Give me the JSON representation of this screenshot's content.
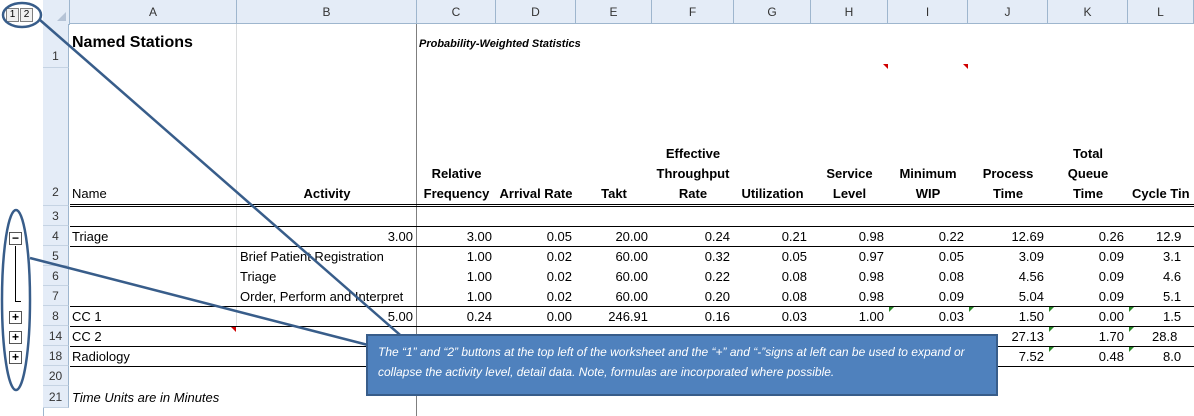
{
  "outline": {
    "level1": "1",
    "level2": "2",
    "plus_sign": "+",
    "minus_sign": "−"
  },
  "columns": [
    "A",
    "B",
    "C",
    "D",
    "E",
    "F",
    "G",
    "H",
    "I",
    "J",
    "K",
    "L"
  ],
  "rows": [
    "1",
    "2",
    "3",
    "4",
    "5",
    "6",
    "7",
    "8",
    "14",
    "18",
    "20",
    "21"
  ],
  "title": "Named Stations",
  "subtitle": "Probability-Weighted Statistics",
  "headers": {
    "name": "Name",
    "activity": "Activity",
    "relative_frequency": [
      "Relative",
      "Frequency"
    ],
    "arrival_rate": "Arrival Rate",
    "takt": "Takt",
    "effective_throughput_rate": [
      "Effective",
      "Throughput",
      "Rate"
    ],
    "utilization": "Utilization",
    "service_level": [
      "Service",
      "Level"
    ],
    "minimum_wip": [
      "Minimum",
      "WIP"
    ],
    "process_time": [
      "Process",
      "Time"
    ],
    "total_queue_time": [
      "Total",
      "Queue",
      "Time"
    ],
    "cycle_time": "Cycle Tin"
  },
  "data_rows": [
    {
      "row": "4",
      "name": "Triage",
      "activity": "",
      "b": "3.00",
      "values": [
        "3.00",
        "0.05",
        "20.00",
        "0.24",
        "0.21",
        "0.98",
        "0.22",
        "12.69",
        "0.26",
        "12.9"
      ]
    },
    {
      "row": "5",
      "name": "",
      "activity": "Brief Patient Registration",
      "b": "",
      "values": [
        "1.00",
        "0.02",
        "60.00",
        "0.32",
        "0.05",
        "0.97",
        "0.05",
        "3.09",
        "0.09",
        "3.1"
      ]
    },
    {
      "row": "6",
      "name": "",
      "activity": "Triage",
      "b": "",
      "values": [
        "1.00",
        "0.02",
        "60.00",
        "0.22",
        "0.08",
        "0.98",
        "0.08",
        "4.56",
        "0.09",
        "4.6"
      ]
    },
    {
      "row": "7",
      "name": "",
      "activity": "Order, Perform and Interpret",
      "b": "",
      "values": [
        "1.00",
        "0.02",
        "60.00",
        "0.20",
        "0.08",
        "0.98",
        "0.09",
        "5.04",
        "0.09",
        "5.1"
      ]
    },
    {
      "row": "8",
      "name": "CC 1",
      "activity": "",
      "b": "5.00",
      "values": [
        "0.24",
        "0.00",
        "246.91",
        "0.16",
        "0.03",
        "1.00",
        "0.03",
        "1.50",
        "0.00",
        "1.5"
      ]
    },
    {
      "row": "14",
      "name": "CC 2",
      "activity": "",
      "b": "",
      "values": [
        "",
        "",
        "",
        "",
        "",
        "",
        "",
        "27.13",
        "1.70",
        "28.8"
      ]
    },
    {
      "row": "18",
      "name": "Radiology",
      "activity": "",
      "b": "",
      "values": [
        "",
        "",
        "",
        "",
        "",
        "",
        "",
        "7.52",
        "0.48",
        "8.0"
      ]
    }
  ],
  "footnote": "Time Units are in Minutes",
  "callout_text": "The “1” and “2” buttons at the top left of the worksheet and the “+” and “-”signs at left can be used to expand or collapse the activity level, detail data.  Note, formulas are incorporated where possible.",
  "colors": {
    "callout_fill": "#4f81bd",
    "callout_border": "#385d8a",
    "annotation_line": "#385d8a",
    "header_fill": "#e4ecf7"
  }
}
